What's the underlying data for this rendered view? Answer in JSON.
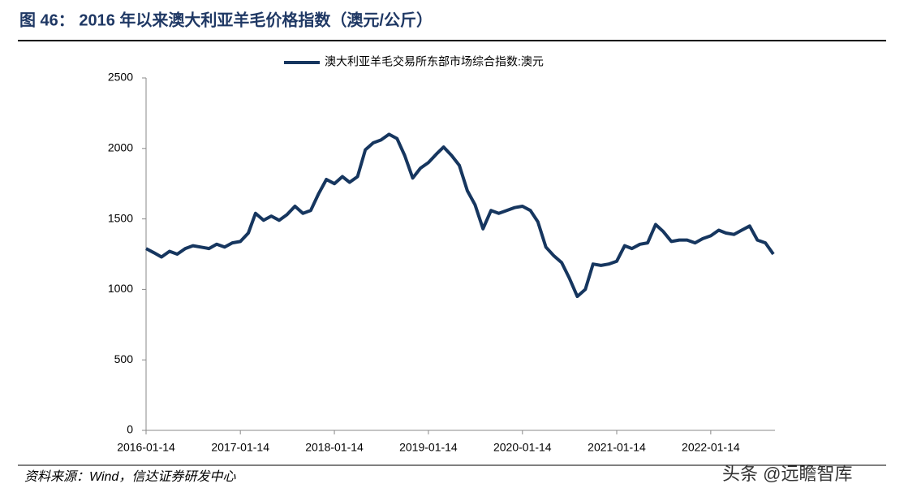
{
  "chart_data": {
    "type": "line",
    "title": "图 46：  2016 年以来澳大利亚羊毛价格指数（澳元/公斤）",
    "source": "资料来源：Wind，信达证券研发中心",
    "watermark": "头条 @远瞻智库",
    "x": [
      "2016-01-14",
      "2016-02-14",
      "2016-03-14",
      "2016-04-14",
      "2016-05-14",
      "2016-06-14",
      "2016-07-14",
      "2016-08-14",
      "2016-09-14",
      "2016-10-14",
      "2016-11-14",
      "2016-12-14",
      "2017-01-14",
      "2017-02-14",
      "2017-03-14",
      "2017-04-14",
      "2017-05-14",
      "2017-06-14",
      "2017-07-14",
      "2017-08-14",
      "2017-09-14",
      "2017-10-14",
      "2017-11-14",
      "2017-12-14",
      "2018-01-14",
      "2018-02-14",
      "2018-03-14",
      "2018-04-14",
      "2018-05-14",
      "2018-06-14",
      "2018-07-14",
      "2018-08-14",
      "2018-09-14",
      "2018-10-14",
      "2018-11-14",
      "2018-12-14",
      "2019-01-14",
      "2019-02-14",
      "2019-03-14",
      "2019-04-14",
      "2019-05-14",
      "2019-06-14",
      "2019-07-14",
      "2019-08-14",
      "2019-09-14",
      "2019-10-14",
      "2019-11-14",
      "2019-12-14",
      "2020-01-14",
      "2020-02-14",
      "2020-03-14",
      "2020-04-14",
      "2020-05-14",
      "2020-06-14",
      "2020-07-14",
      "2020-08-14",
      "2020-09-14",
      "2020-10-14",
      "2020-11-14",
      "2020-12-14",
      "2021-01-14",
      "2021-02-14",
      "2021-03-14",
      "2021-04-14",
      "2021-05-14",
      "2021-06-14",
      "2021-07-14",
      "2021-08-14",
      "2021-09-14",
      "2021-10-14",
      "2021-11-14",
      "2021-12-14",
      "2022-01-14",
      "2022-02-14",
      "2022-03-14",
      "2022-04-14",
      "2022-05-14",
      "2022-06-14",
      "2022-07-14",
      "2022-08-14",
      "2022-09-14"
    ],
    "series": [
      {
        "name": "澳大利亚羊毛交易所东部市场综合指数:澳元",
        "color": "#16365f",
        "values": [
          1290,
          1260,
          1230,
          1270,
          1250,
          1290,
          1310,
          1300,
          1290,
          1320,
          1300,
          1330,
          1340,
          1400,
          1540,
          1490,
          1520,
          1490,
          1530,
          1590,
          1540,
          1560,
          1680,
          1780,
          1750,
          1800,
          1760,
          1800,
          1990,
          2040,
          2060,
          2100,
          2070,
          1950,
          1790,
          1860,
          1900,
          1960,
          2010,
          1950,
          1880,
          1700,
          1600,
          1430,
          1560,
          1540,
          1560,
          1580,
          1590,
          1560,
          1480,
          1300,
          1240,
          1190,
          1080,
          950,
          1000,
          1180,
          1170,
          1180,
          1200,
          1310,
          1290,
          1320,
          1330,
          1460,
          1410,
          1340,
          1350,
          1350,
          1330,
          1360,
          1380,
          1420,
          1400,
          1390,
          1420,
          1450,
          1350,
          1330,
          1250
        ]
      }
    ],
    "xlim": [
      "2016-01-14",
      "2022-09-14"
    ],
    "xticks": [
      "2016-01-14",
      "2017-01-14",
      "2018-01-14",
      "2019-01-14",
      "2020-01-14",
      "2021-01-14",
      "2022-01-14"
    ],
    "ylim": [
      0,
      2500
    ],
    "yticks": [
      0,
      500,
      1000,
      1500,
      2000,
      2500
    ],
    "legend": "top"
  }
}
